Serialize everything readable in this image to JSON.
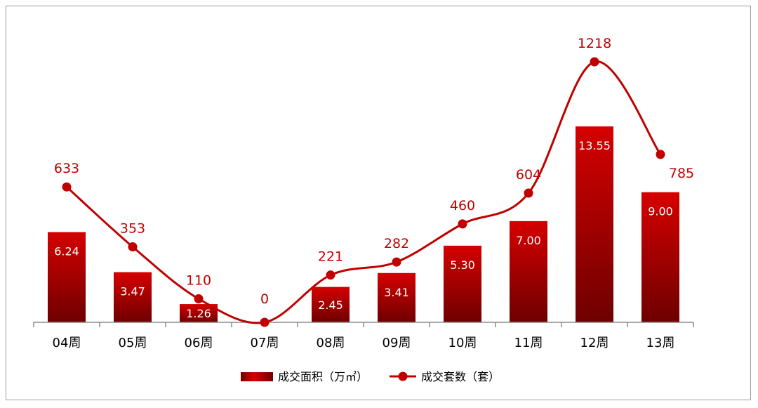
{
  "chart_data": {
    "type": "bar",
    "categories": [
      "04周",
      "05周",
      "06周",
      "07周",
      "08周",
      "09周",
      "10周",
      "11周",
      "12周",
      "13周"
    ],
    "series": [
      {
        "name": "成交面积（万㎡）",
        "type": "bar",
        "values": [
          6.24,
          3.47,
          1.26,
          0,
          2.45,
          3.41,
          5.3,
          7.0,
          13.55,
          9.0
        ],
        "labels": [
          "6.24",
          "3.47",
          "1.26",
          "",
          "2.45",
          "3.41",
          "5.30",
          "7.00",
          "13.55",
          "9.00"
        ]
      },
      {
        "name": "成交套数（套）",
        "type": "line",
        "values": [
          633,
          353,
          110,
          0,
          221,
          282,
          460,
          604,
          1218,
          785
        ],
        "labels": [
          "633",
          "353",
          "110",
          "0",
          "221",
          "282",
          "460",
          "604",
          "1218",
          "785"
        ]
      }
    ],
    "bar_ylim": [
      0,
      20
    ],
    "line_ylim": [
      0,
      1320
    ],
    "smooth_line": true,
    "grid": false,
    "legend_position": "bottom-center",
    "colors": {
      "bar_top": "#d50000",
      "bar_bottom": "#6e0000",
      "line": "#c00000",
      "axis": "#8c8c8c"
    }
  }
}
